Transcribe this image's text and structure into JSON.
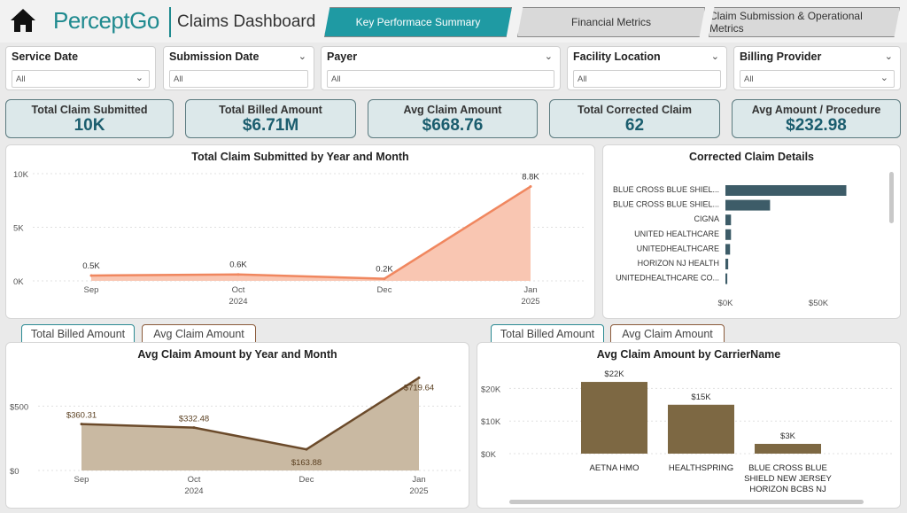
{
  "header": {
    "logo_text_a": "Percept",
    "logo_text_b": "Go",
    "title": "Claims Dashboard",
    "tabs": [
      "Key Performace Summary",
      "Financial Metrics",
      "Claim Submission & Operational Metrics"
    ]
  },
  "filters": [
    {
      "label": "Service Date",
      "value": "All"
    },
    {
      "label": "Submission Date",
      "value": "All"
    },
    {
      "label": "Payer",
      "value": "All"
    },
    {
      "label": "Facility Location",
      "value": "All"
    },
    {
      "label": "Billing Provider",
      "value": "All"
    }
  ],
  "kpis": [
    {
      "label": "Total Claim Submitted",
      "value": "10K"
    },
    {
      "label": "Total Billed Amount",
      "value": "$6.71M"
    },
    {
      "label": "Avg Claim Amount",
      "value": "$668.76"
    },
    {
      "label": "Total Corrected Claim",
      "value": "62"
    },
    {
      "label": "Avg Amount / Procedure",
      "value": "$232.98"
    }
  ],
  "toggles_left": [
    "Total Billed Amount",
    "Avg Claim Amount"
  ],
  "toggles_right": [
    "Total Billed Amount",
    "Avg Claim Amount"
  ],
  "colors": {
    "accent": "#1f9aa3",
    "kpi_value": "#1b5d6e",
    "line_orange": "#f0875f",
    "area_orange": "#f9c6b2",
    "bar_slate": "#3d5c68",
    "brown": "#6b4a2a",
    "bar_brown": "#7d6843"
  },
  "chart_data": [
    {
      "type": "area",
      "title": "Total Claim Submitted by Year and Month",
      "x": [
        "Sep",
        "Oct",
        "Dec",
        "Jan"
      ],
      "x_years": [
        "2024",
        "2025"
      ],
      "values": [
        500,
        600,
        200,
        8800
      ],
      "labels": [
        "0.5K",
        "0.6K",
        "0.2K",
        "8.8K"
      ],
      "yticks": [
        "10K",
        "5K",
        "0K"
      ],
      "ylim": [
        0,
        10000
      ]
    },
    {
      "type": "bar",
      "orientation": "horizontal",
      "title": "Corrected Claim Details",
      "categories": [
        "BLUE CROSS BLUE SHIEL...",
        "BLUE CROSS BLUE SHIEL...",
        "CIGNA",
        "UNITED HEALTHCARE",
        "UNITEDHEALTHCARE",
        "HORIZON NJ HEALTH",
        "UNITEDHEALTHCARE CO..."
      ],
      "values": [
        65000,
        24000,
        3000,
        3000,
        2500,
        1500,
        1000
      ],
      "xticks": [
        "$0K",
        "$50K"
      ],
      "xlim": [
        0,
        100000
      ]
    },
    {
      "type": "area",
      "title": "Avg Claim Amount by Year and Month",
      "x": [
        "Sep",
        "Oct",
        "Dec",
        "Jan"
      ],
      "x_years": [
        "2024",
        "2025"
      ],
      "values": [
        360.31,
        332.48,
        163.88,
        719.64
      ],
      "labels": [
        "$360.31",
        "$332.48",
        "$163.88",
        "$719.64"
      ],
      "yticks": [
        "$500",
        "$0"
      ],
      "ylim": [
        0,
        750
      ]
    },
    {
      "type": "bar",
      "title": "Avg Claim Amount by CarrierName",
      "categories": [
        "AETNA HMO",
        "HEALTHSPRING",
        "BLUE CROSS BLUE SHIELD NEW JERSEY HORIZON BCBS NJ"
      ],
      "category_lines": [
        [
          "AETNA HMO"
        ],
        [
          "HEALTHSPRING"
        ],
        [
          "BLUE CROSS BLUE",
          "SHIELD NEW JERSEY",
          "HORIZON BCBS NJ"
        ]
      ],
      "values": [
        22000,
        15000,
        3000
      ],
      "labels": [
        "$22K",
        "$15K",
        "$3K"
      ],
      "yticks": [
        "$20K",
        "$10K",
        "$0K"
      ],
      "ylim": [
        0,
        25000
      ]
    }
  ]
}
